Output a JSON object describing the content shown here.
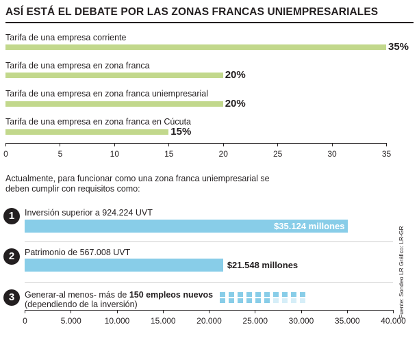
{
  "title": "ASÍ ESTÁ EL DEBATE POR LAS ZONAS FRANCAS UNIEMPRESARIALES",
  "colors": {
    "green_bar": "#c2d88c",
    "blue_bar": "#88cde8",
    "dark": "#231f20",
    "grid_light": "#d6eef8"
  },
  "chart_data": [
    {
      "type": "bar",
      "categories": [
        "Tarifa de una empresa corriente",
        "Tarifa de una empresa en zona franca",
        "Tarifa de una empresa en zona franca uniempresarial",
        "Tarifa de una empresa en zona franca en Cúcuta"
      ],
      "values": [
        35,
        20,
        20,
        15
      ],
      "value_labels": [
        "35%",
        "20%",
        "20%",
        "15%"
      ],
      "xlim": [
        0,
        35
      ],
      "xticks": [
        "0",
        "5",
        "10",
        "15",
        "20",
        "25",
        "30",
        "35"
      ],
      "orientation": "horizontal"
    },
    {
      "type": "bar",
      "intro": "Actualmente, para funcionar como una zona franca uniempresarial se deben cumplir con requisitos como:",
      "requirements": [
        {
          "number": "1",
          "label": "Inversión superior a 924.224 UVT",
          "value": 35124,
          "value_label": "$35.124 millones"
        },
        {
          "number": "2",
          "label": "Patrimonio de 567.008 UVT",
          "value": 21548,
          "value_label": "$21.548 millones"
        },
        {
          "number": "3",
          "label_pre": "Generar-al menos- más de ",
          "label_bold": "150 empleos nuevos",
          "label_line2": "(dependiendo de la inversión)",
          "icon": "employee-grid-icon",
          "grid_filled_fraction": 0.8
        }
      ],
      "xlim": [
        0,
        40000
      ],
      "xticks": [
        "0",
        "5.000",
        "10.000",
        "15.000",
        "20.000",
        "25.000",
        "30.000",
        "35.000",
        "40.000"
      ],
      "orientation": "horizontal"
    }
  ],
  "source": "Fuente: Sondeo LR   Gráfico: LR-GR"
}
